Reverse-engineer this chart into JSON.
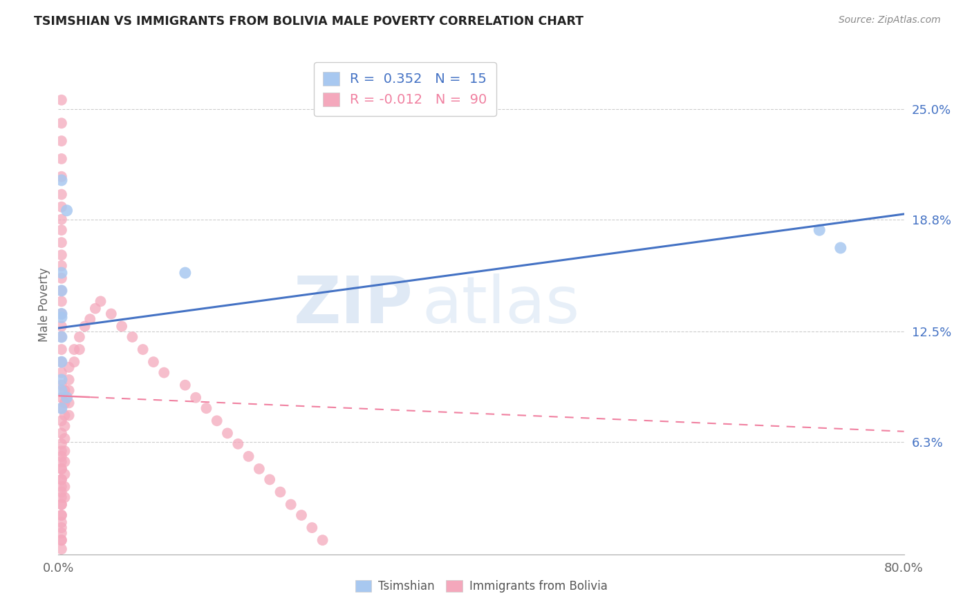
{
  "title": "TSIMSHIAN VS IMMIGRANTS FROM BOLIVIA MALE POVERTY CORRELATION CHART",
  "source": "Source: ZipAtlas.com",
  "ylabel": "Male Poverty",
  "xmin": 0.0,
  "xmax": 0.8,
  "ymin": 0.0,
  "ymax": 0.28,
  "ytick_vals": [
    0.063,
    0.125,
    0.188,
    0.25
  ],
  "ytick_labels": [
    "6.3%",
    "12.5%",
    "18.8%",
    "25.0%"
  ],
  "xtick_vals": [
    0.0,
    0.8
  ],
  "xtick_labels": [
    "0.0%",
    "80.0%"
  ],
  "tsimshian_color": "#A8C8F0",
  "bolivia_color": "#F4A8BC",
  "trend_tsimshian_color": "#4472C4",
  "trend_bolivia_color": "#F080A0",
  "background_color": "#FFFFFF",
  "watermark_zip": "ZIP",
  "watermark_atlas": "atlas",
  "ts_trend_x0": 0.0,
  "ts_trend_y0": 0.127,
  "ts_trend_x1": 0.8,
  "ts_trend_y1": 0.191,
  "bo_trend_x0": 0.0,
  "bo_trend_y0": 0.089,
  "bo_trend_x1": 0.8,
  "bo_trend_y1": 0.069,
  "tsimshian_x": [
    0.003,
    0.003,
    0.003,
    0.008,
    0.003,
    0.003,
    0.003,
    0.003,
    0.003,
    0.12,
    0.003,
    0.008,
    0.003,
    0.72,
    0.74
  ],
  "tsimshian_y": [
    0.135,
    0.148,
    0.21,
    0.193,
    0.158,
    0.133,
    0.122,
    0.108,
    0.098,
    0.158,
    0.092,
    0.088,
    0.082,
    0.182,
    0.172
  ],
  "bolivia_x": [
    0.003,
    0.003,
    0.003,
    0.003,
    0.003,
    0.003,
    0.003,
    0.003,
    0.003,
    0.003,
    0.003,
    0.003,
    0.003,
    0.003,
    0.003,
    0.003,
    0.003,
    0.003,
    0.003,
    0.003,
    0.003,
    0.003,
    0.003,
    0.003,
    0.003,
    0.003,
    0.003,
    0.003,
    0.003,
    0.003,
    0.003,
    0.003,
    0.003,
    0.003,
    0.003,
    0.003,
    0.003,
    0.003,
    0.003,
    0.003,
    0.003,
    0.003,
    0.003,
    0.003,
    0.003,
    0.003,
    0.003,
    0.006,
    0.006,
    0.006,
    0.006,
    0.006,
    0.006,
    0.006,
    0.006,
    0.006,
    0.006,
    0.01,
    0.01,
    0.01,
    0.01,
    0.01,
    0.015,
    0.015,
    0.02,
    0.02,
    0.025,
    0.03,
    0.035,
    0.04,
    0.05,
    0.06,
    0.07,
    0.08,
    0.09,
    0.1,
    0.12,
    0.13,
    0.14,
    0.15,
    0.16,
    0.17,
    0.18,
    0.19,
    0.2,
    0.21,
    0.22,
    0.23,
    0.24,
    0.25
  ],
  "bolivia_y": [
    0.255,
    0.242,
    0.232,
    0.222,
    0.212,
    0.202,
    0.195,
    0.188,
    0.182,
    0.175,
    0.168,
    0.162,
    0.155,
    0.148,
    0.142,
    0.135,
    0.128,
    0.122,
    0.115,
    0.108,
    0.102,
    0.095,
    0.088,
    0.082,
    0.075,
    0.068,
    0.062,
    0.055,
    0.048,
    0.042,
    0.035,
    0.028,
    0.022,
    0.015,
    0.008,
    0.003,
    0.058,
    0.052,
    0.048,
    0.042,
    0.038,
    0.032,
    0.028,
    0.022,
    0.018,
    0.012,
    0.008,
    0.092,
    0.085,
    0.078,
    0.072,
    0.065,
    0.058,
    0.052,
    0.045,
    0.038,
    0.032,
    0.105,
    0.098,
    0.092,
    0.085,
    0.078,
    0.115,
    0.108,
    0.122,
    0.115,
    0.128,
    0.132,
    0.138,
    0.142,
    0.135,
    0.128,
    0.122,
    0.115,
    0.108,
    0.102,
    0.095,
    0.088,
    0.082,
    0.075,
    0.068,
    0.062,
    0.055,
    0.048,
    0.042,
    0.035,
    0.028,
    0.022,
    0.015,
    0.008
  ]
}
